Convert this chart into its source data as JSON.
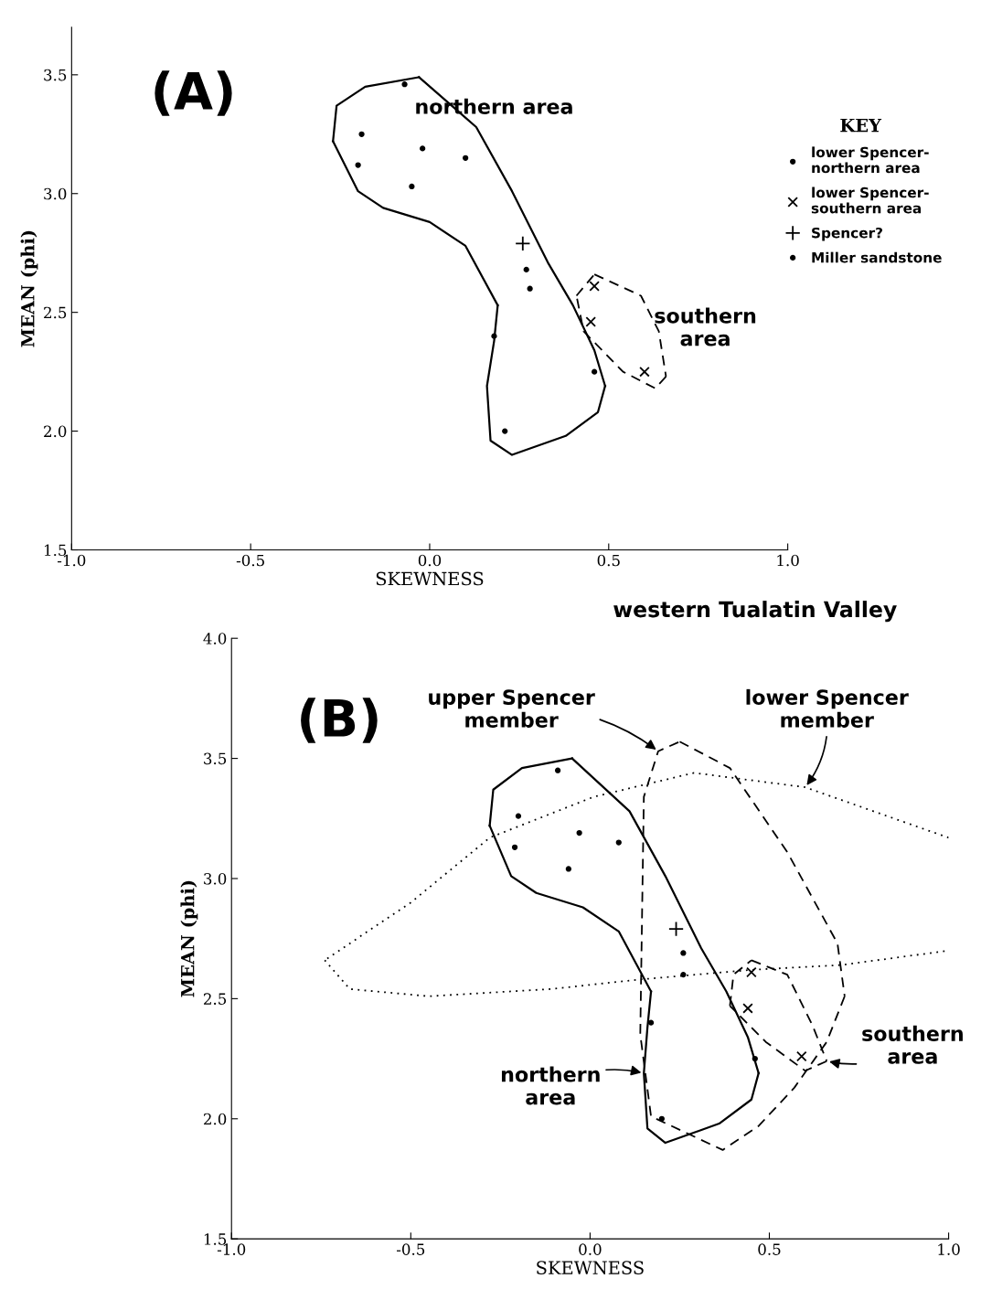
{
  "chart_data": [
    {
      "type": "scatter",
      "xlabel": "SKEWNESS",
      "ylabel": "MEAN (phi)",
      "legend_title": "KEY",
      "legend": "right",
      "xlim": [
        -1.0,
        1.0
      ],
      "ylim": [
        1.5,
        3.7
      ],
      "xticks": [
        {
          "value": -1.0,
          "label": "-1.0"
        },
        {
          "value": -0.5,
          "label": "-0.5"
        },
        {
          "value": 0.0,
          "label": "0.0"
        },
        {
          "value": 0.5,
          "label": "0.5"
        },
        {
          "value": 1.0,
          "label": "1.0"
        }
      ],
      "yticks": [
        1.5,
        {
          "value": 2.0,
          "label": "2.0"
        },
        2.5,
        {
          "value": 3.0,
          "label": "3.0"
        },
        3.5
      ],
      "annotations": [
        "(A)",
        "northern area",
        "southern\narea"
      ],
      "series": [
        {
          "name": "lower Spencer-\nnorthern area",
          "color": "#000000",
          "marker": "circle",
          "x": [
            -0.07,
            -0.19,
            -0.2,
            -0.02,
            0.1,
            -0.05,
            0.27,
            0.28,
            0.46,
            0.21
          ],
          "values": [
            3.46,
            3.25,
            3.12,
            3.19,
            3.15,
            3.03,
            2.68,
            2.6,
            2.25,
            2.0
          ]
        },
        {
          "name": "lower Spencer-\nsouthern area",
          "color": "#000000",
          "marker": "cross",
          "x": [
            0.46,
            0.45,
            0.6
          ],
          "values": [
            2.61,
            2.46,
            2.25
          ]
        },
        {
          "name": "Spencer?",
          "color": "#000000",
          "x": [
            0.26
          ],
          "values": [
            2.79
          ]
        },
        {
          "name": "Miller sandstone",
          "color": "#000000",
          "marker": "circle",
          "x": [
            0.18
          ],
          "values": [
            2.4
          ]
        },
        {
          "type": "line",
          "color": "#000000",
          "line_style": "solid",
          "x": [
            -0.03,
            0.13,
            0.23,
            0.33,
            0.4,
            0.46,
            0.49
          ],
          "values": [
            3.49,
            3.28,
            3.01,
            2.71,
            2.53,
            2.34,
            2.19
          ]
        },
        {
          "type": "line",
          "color": "#000000",
          "line_style": "solid",
          "x": [
            0.49,
            0.47,
            0.38,
            0.23,
            0.17,
            0.16,
            0.18,
            0.19
          ],
          "values": [
            2.19,
            2.08,
            1.98,
            1.9,
            1.96,
            2.19,
            2.38,
            2.53
          ]
        },
        {
          "type": "line",
          "color": "#000000",
          "line_style": "solid",
          "x": [
            0.19,
            0.1,
            0.0,
            -0.13,
            -0.2,
            -0.27
          ],
          "values": [
            2.53,
            2.78,
            2.88,
            2.94,
            3.01,
            3.22
          ]
        },
        {
          "type": "line",
          "color": "#000000",
          "line_style": "solid",
          "x": [
            -0.27,
            -0.26,
            -0.18,
            -0.03
          ],
          "values": [
            3.22,
            3.37,
            3.45,
            3.49
          ]
        },
        {
          "type": "line",
          "color": "#000000",
          "line_style": "dashed",
          "x": [
            0.46,
            0.59,
            0.64,
            0.66
          ],
          "values": [
            2.66,
            2.57,
            2.42,
            2.23
          ]
        },
        {
          "type": "line",
          "color": "#000000",
          "line_style": "dashed",
          "x": [
            0.66,
            0.63,
            0.54,
            0.43,
            0.41
          ],
          "values": [
            2.23,
            2.18,
            2.25,
            2.42,
            2.57
          ]
        },
        {
          "type": "line",
          "color": "#000000",
          "line_style": "dashed",
          "x": [
            0.41,
            0.46
          ],
          "values": [
            2.57,
            2.66
          ]
        }
      ]
    },
    {
      "type": "scatter",
      "subtitle": "western Tualatin Valley",
      "xlabel": "SKEWNESS",
      "ylabel": "MEAN (phi)",
      "xlim": [
        -1.0,
        1.0
      ],
      "ylim": [
        1.5,
        4.0
      ],
      "xticks": [
        {
          "value": -1.0,
          "label": "-1.0"
        },
        {
          "value": -0.5,
          "label": "-0.5"
        },
        {
          "value": 0.0,
          "label": "0.0"
        },
        {
          "value": 0.5,
          "label": "0.5"
        },
        {
          "value": 1.0,
          "label": "1.0"
        }
      ],
      "yticks": [
        1.5,
        {
          "value": 2.0,
          "label": "2.0"
        },
        2.5,
        {
          "value": 3.0,
          "label": "3.0"
        },
        3.5,
        {
          "value": 4.0,
          "label": "4.0"
        }
      ],
      "annotations": [
        "(B)",
        {
          "text": "upper Spencer\nmember",
          "x": 0.19,
          "y": 3.53
        },
        {
          "text": "lower Spencer\nmember",
          "x": 0.6,
          "y": 3.38
        },
        {
          "text": "northern\narea",
          "x": 0.15,
          "y": 2.19
        },
        {
          "text": "southern\narea",
          "x": 0.66,
          "y": 2.24
        }
      ],
      "series": [
        {
          "color": "#000000",
          "marker": "circle",
          "x": [
            -0.09,
            -0.2,
            -0.21,
            -0.03,
            0.08,
            -0.06,
            0.26,
            0.26,
            0.46,
            0.2
          ],
          "values": [
            3.45,
            3.26,
            3.13,
            3.19,
            3.15,
            3.04,
            2.69,
            2.6,
            2.25,
            2.0
          ]
        },
        {
          "color": "#000000",
          "marker": "cross",
          "x": [
            0.45,
            0.44,
            0.59
          ],
          "values": [
            2.61,
            2.46,
            2.26
          ]
        },
        {
          "color": "#000000",
          "x": [
            0.24
          ],
          "values": [
            2.79
          ]
        },
        {
          "color": "#000000",
          "marker": "circle",
          "x": [
            0.17
          ],
          "values": [
            2.4
          ]
        },
        {
          "type": "line",
          "color": "#000000",
          "line_style": "solid",
          "x": [
            -0.05,
            0.11,
            0.21,
            0.31,
            0.38,
            0.44,
            0.47
          ],
          "values": [
            3.5,
            3.28,
            3.01,
            2.71,
            2.53,
            2.34,
            2.19
          ]
        },
        {
          "type": "line",
          "color": "#000000",
          "line_style": "solid",
          "x": [
            0.47,
            0.45,
            0.36,
            0.21,
            0.16,
            0.15,
            0.16,
            0.17
          ],
          "values": [
            2.19,
            2.08,
            1.98,
            1.9,
            1.96,
            2.19,
            2.38,
            2.53
          ]
        },
        {
          "type": "line",
          "color": "#000000",
          "line_style": "solid",
          "x": [
            0.17,
            0.08,
            -0.02,
            -0.15,
            -0.22,
            -0.28
          ],
          "values": [
            2.53,
            2.78,
            2.88,
            2.94,
            3.01,
            3.22
          ]
        },
        {
          "type": "line",
          "color": "#000000",
          "line_style": "solid",
          "x": [
            -0.28,
            -0.27,
            -0.19,
            -0.05
          ],
          "values": [
            3.22,
            3.37,
            3.46,
            3.5
          ]
        },
        {
          "type": "line",
          "color": "#000000",
          "line_style": "dashed",
          "x": [
            0.25,
            0.39,
            0.55,
            0.69,
            0.71
          ],
          "values": [
            3.57,
            3.46,
            3.11,
            2.73,
            2.51
          ]
        },
        {
          "type": "line",
          "color": "#000000",
          "line_style": "dashed",
          "x": [
            0.71,
            0.66,
            0.57,
            0.47,
            0.37,
            0.27,
            0.17,
            0.14,
            0.145,
            0.15,
            0.19,
            0.25
          ],
          "values": [
            2.51,
            2.32,
            2.13,
            1.97,
            1.87,
            1.94,
            2.01,
            2.35,
            2.85,
            3.34,
            3.53,
            3.57
          ]
        },
        {
          "type": "line",
          "color": "#000000",
          "line_style": "dotted",
          "x": [
            1.0,
            0.6,
            0.29,
            0.01,
            -0.28,
            -0.5,
            -0.74
          ],
          "values": [
            3.17,
            3.38,
            3.44,
            3.34,
            3.17,
            2.9,
            2.66
          ]
        },
        {
          "type": "line",
          "color": "#000000",
          "line_style": "dotted",
          "x": [
            -0.74,
            -0.67,
            -0.45,
            -0.11,
            0.14,
            0.45,
            0.7,
            1.0
          ],
          "values": [
            2.66,
            2.54,
            2.51,
            2.54,
            2.58,
            2.62,
            2.64,
            2.7
          ]
        },
        {
          "type": "line",
          "color": "#000000",
          "line_style": "dashed",
          "x": [
            0.45,
            0.55,
            0.62,
            0.66
          ],
          "values": [
            2.66,
            2.6,
            2.39,
            2.24
          ]
        },
        {
          "type": "line",
          "color": "#000000",
          "line_style": "dashed",
          "x": [
            0.66,
            0.6,
            0.49,
            0.39
          ],
          "values": [
            2.24,
            2.2,
            2.32,
            2.47
          ]
        },
        {
          "type": "line",
          "color": "#000000",
          "line_style": "dashed",
          "x": [
            0.39,
            0.4,
            0.45
          ],
          "values": [
            2.47,
            2.6,
            2.66
          ]
        }
      ]
    }
  ]
}
